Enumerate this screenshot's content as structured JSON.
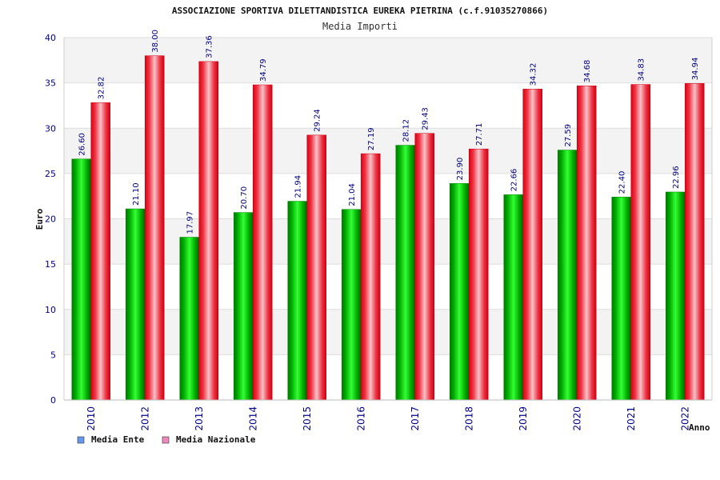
{
  "chart_data": {
    "type": "bar",
    "title": "ASSOCIAZIONE SPORTIVA DILETTANDISTICA EUREKA PIETRINA (c.f.91035270866)",
    "subtitle": "Media Importi",
    "xlabel": "Anno",
    "ylabel": "Euro",
    "ylim": [
      0,
      40
    ],
    "yticks": [
      0,
      5,
      10,
      15,
      20,
      25,
      30,
      35,
      40
    ],
    "categories": [
      "2010",
      "2012",
      "2013",
      "2014",
      "2015",
      "2016",
      "2017",
      "2018",
      "2019",
      "2020",
      "2021",
      "2022"
    ],
    "series": [
      {
        "name": "Media Ente",
        "bar_color": "#00bb00",
        "legend_color": "#6699ee",
        "values": [
          26.6,
          21.1,
          17.97,
          20.7,
          21.94,
          21.04,
          28.12,
          23.9,
          22.66,
          27.59,
          22.4,
          22.96
        ],
        "labels": [
          "26.60",
          "21.10",
          "17.97",
          "20.70",
          "21.94",
          "21.04",
          "28.12",
          "23.90",
          "22.66",
          "27.59",
          "22.40",
          "22.96"
        ]
      },
      {
        "name": "Media Nazionale",
        "bar_color": "#ee1122",
        "legend_color": "#ee88bb",
        "values": [
          32.82,
          38.0,
          37.36,
          34.79,
          29.24,
          27.19,
          29.43,
          27.71,
          34.32,
          34.68,
          34.83,
          34.94
        ],
        "labels": [
          "32.82",
          "38.00",
          "37.36",
          "34.79",
          "29.24",
          "27.19",
          "29.43",
          "27.71",
          "34.32",
          "34.68",
          "34.83",
          "34.94"
        ]
      }
    ],
    "grid": true,
    "legend_position": "bottom-left"
  }
}
